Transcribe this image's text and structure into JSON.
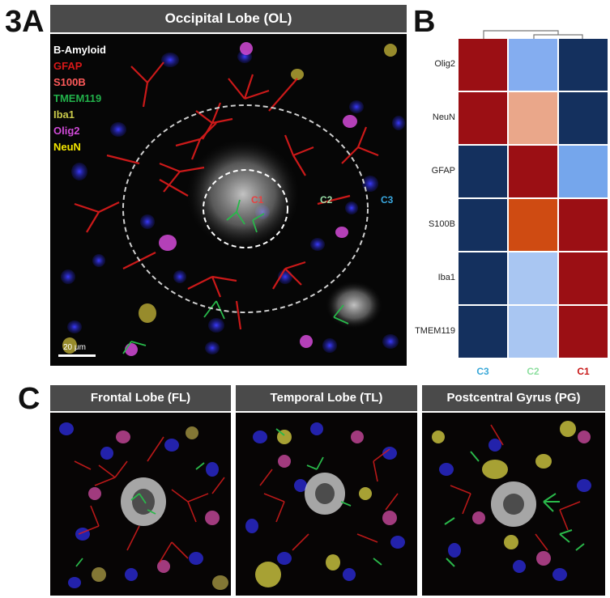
{
  "panel_a": {
    "letter": "3A",
    "title": "Occipital Lobe (OL)",
    "legend": [
      {
        "label": "B-Amyloid",
        "color": "#ffffff"
      },
      {
        "label": "GFAP",
        "color": "#d81818"
      },
      {
        "label": "S100B",
        "color": "#ff5a5a"
      },
      {
        "label": "TMEM119",
        "color": "#22b04a"
      },
      {
        "label": "Iba1",
        "color": "#c8c84a"
      },
      {
        "label": "Olig2",
        "color": "#d04ad8"
      },
      {
        "label": "NeuN",
        "color": "#f4e600"
      }
    ],
    "zones": [
      {
        "label": "C1",
        "color": "#e84040"
      },
      {
        "label": "C2",
        "color": "#9adfa8"
      },
      {
        "label": "C3",
        "color": "#3aa8e0"
      }
    ],
    "scalebar": "20 μm"
  },
  "panel_b": {
    "letter": "B",
    "rows": [
      "Olig2",
      "NeuN",
      "GFAP",
      "S100B",
      "Iba1",
      "TMEM119"
    ],
    "columns": [
      {
        "label": "C3",
        "color": "#3aa8d8"
      },
      {
        "label": "C2",
        "color": "#8edfa0"
      },
      {
        "label": "C1",
        "color": "#c81818"
      }
    ],
    "cells": [
      [
        "#9b0f14",
        "#84adf0",
        "#14305e"
      ],
      [
        "#9b0f14",
        "#eaa78a",
        "#14305e"
      ],
      [
        "#14305e",
        "#9b0f14",
        "#75a6ec"
      ],
      [
        "#14305e",
        "#cf4b12",
        "#9b0f14"
      ],
      [
        "#14305e",
        "#a9c6f2",
        "#9b0f14"
      ],
      [
        "#14305e",
        "#a9c6f2",
        "#9b0f14"
      ]
    ]
  },
  "panel_c": {
    "letter": "C",
    "titles": [
      "Frontal Lobe (FL)",
      "Temporal Lobe (TL)",
      "Postcentral Gyrus (PG)"
    ]
  }
}
